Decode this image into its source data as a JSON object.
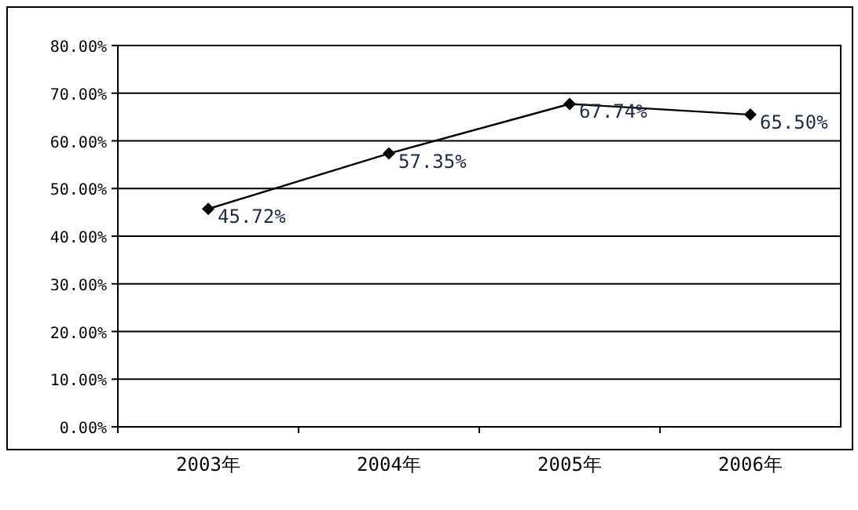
{
  "chart_data": {
    "type": "line",
    "categories": [
      "2003年",
      "2004年",
      "2005年",
      "2006年"
    ],
    "series": [
      {
        "color": "#000000",
        "values": [
          45.72,
          57.35,
          67.74,
          65.5
        ],
        "value_labels": [
          "45.72%",
          "57.35%",
          "67.74%",
          "65.50%"
        ]
      }
    ],
    "ylim": [
      0,
      80
    ],
    "yticks": [
      {
        "value": 0,
        "label": "0.00%"
      },
      {
        "value": 10,
        "label": "10.00%"
      },
      {
        "value": 20,
        "label": "20.00%"
      },
      {
        "value": 30,
        "label": "30.00%"
      },
      {
        "value": 40,
        "label": "40.00%"
      },
      {
        "value": 50,
        "label": "50.00%"
      },
      {
        "value": 60,
        "label": "60.00%"
      },
      {
        "value": 70,
        "label": "70.00%"
      },
      {
        "value": 80,
        "label": "80.00%"
      }
    ],
    "grid": "y",
    "marker": "diamond",
    "line_style": "solid"
  }
}
